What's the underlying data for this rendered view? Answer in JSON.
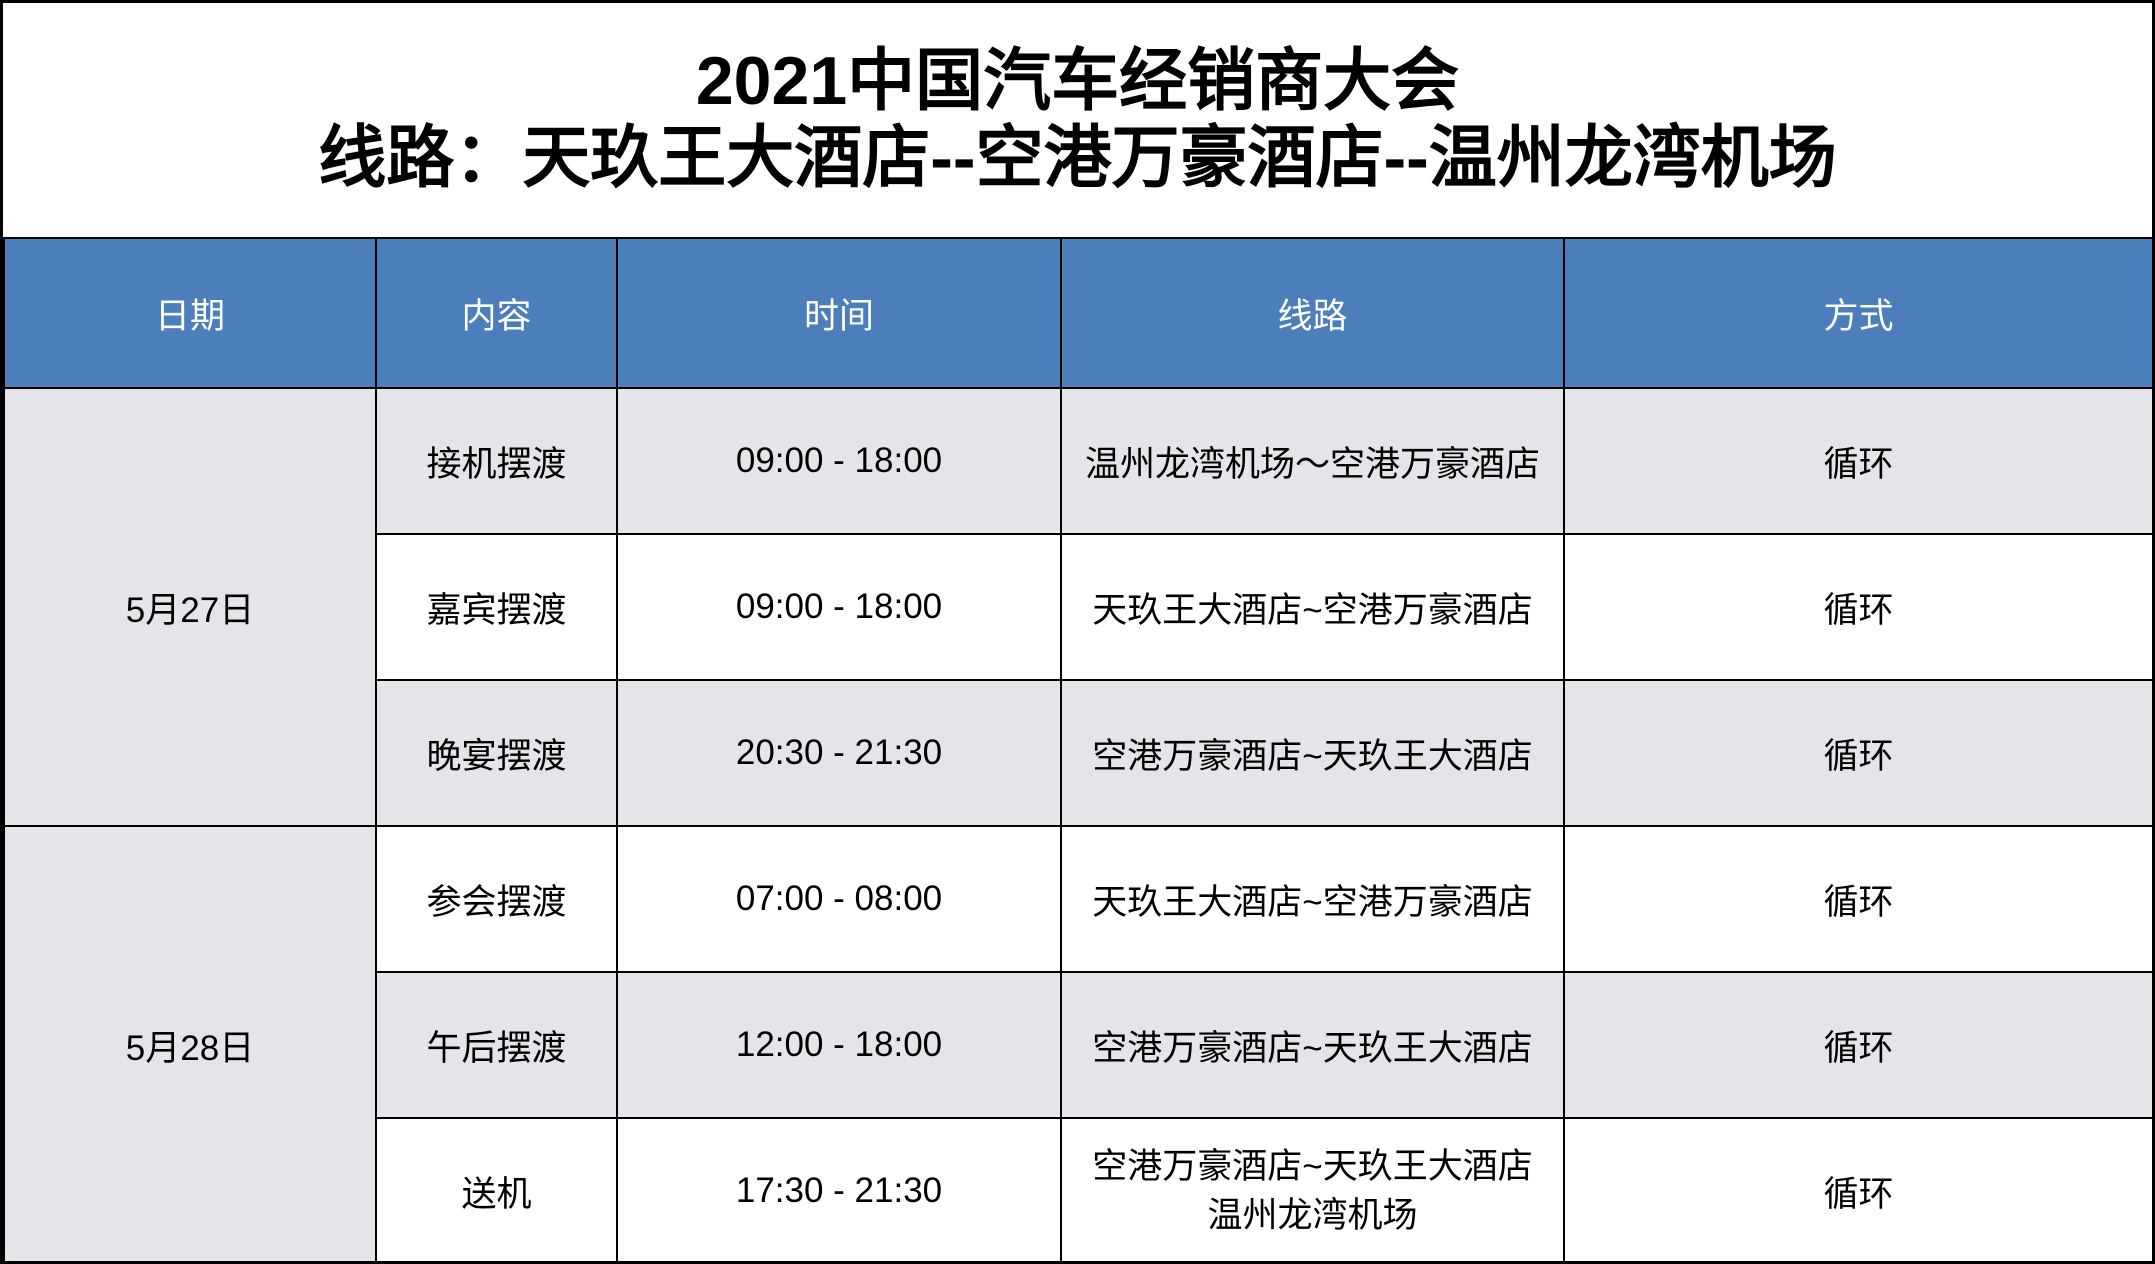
{
  "title": {
    "line1": "2021中国汽车经销商大会",
    "line2": "线路：天玖王大酒店--空港万豪酒店--温州龙湾机场"
  },
  "table": {
    "headers": {
      "date": "日期",
      "content": "内容",
      "time": "时间",
      "route": "线路",
      "method": "方式"
    },
    "groups": [
      {
        "date": "5月27日",
        "rows": [
          {
            "content": "接机摆渡",
            "time": "09:00 - 18:00",
            "route": "温州龙湾机场～空港万豪酒店",
            "method": "循环"
          },
          {
            "content": "嘉宾摆渡",
            "time": "09:00 - 18:00",
            "route": "天玖王大酒店~空港万豪酒店",
            "method": "循环"
          },
          {
            "content": "晚宴摆渡",
            "time": "20:30 - 21:30",
            "route": "空港万豪酒店~天玖王大酒店",
            "method": "循环"
          }
        ]
      },
      {
        "date": "5月28日",
        "rows": [
          {
            "content": "参会摆渡",
            "time": "07:00 - 08:00",
            "route": "天玖王大酒店~空港万豪酒店",
            "method": "循环"
          },
          {
            "content": "午后摆渡",
            "time": "12:00 - 18:00",
            "route": "空港万豪酒店~天玖王大酒店",
            "method": "循环"
          },
          {
            "content": "送机",
            "time": "17:30 - 21:30",
            "route_line1": "空港万豪酒店~天玖王大酒店",
            "route_line2": "温州龙湾机场",
            "method": "循环"
          }
        ]
      }
    ]
  },
  "colors": {
    "header_bg": "#4B7EBB",
    "header_text": "#FFFFFF",
    "row_alt_bg": "#E4E5E9",
    "row_bg": "#FFFFFF",
    "border": "#000000",
    "title_text": "#000000"
  }
}
